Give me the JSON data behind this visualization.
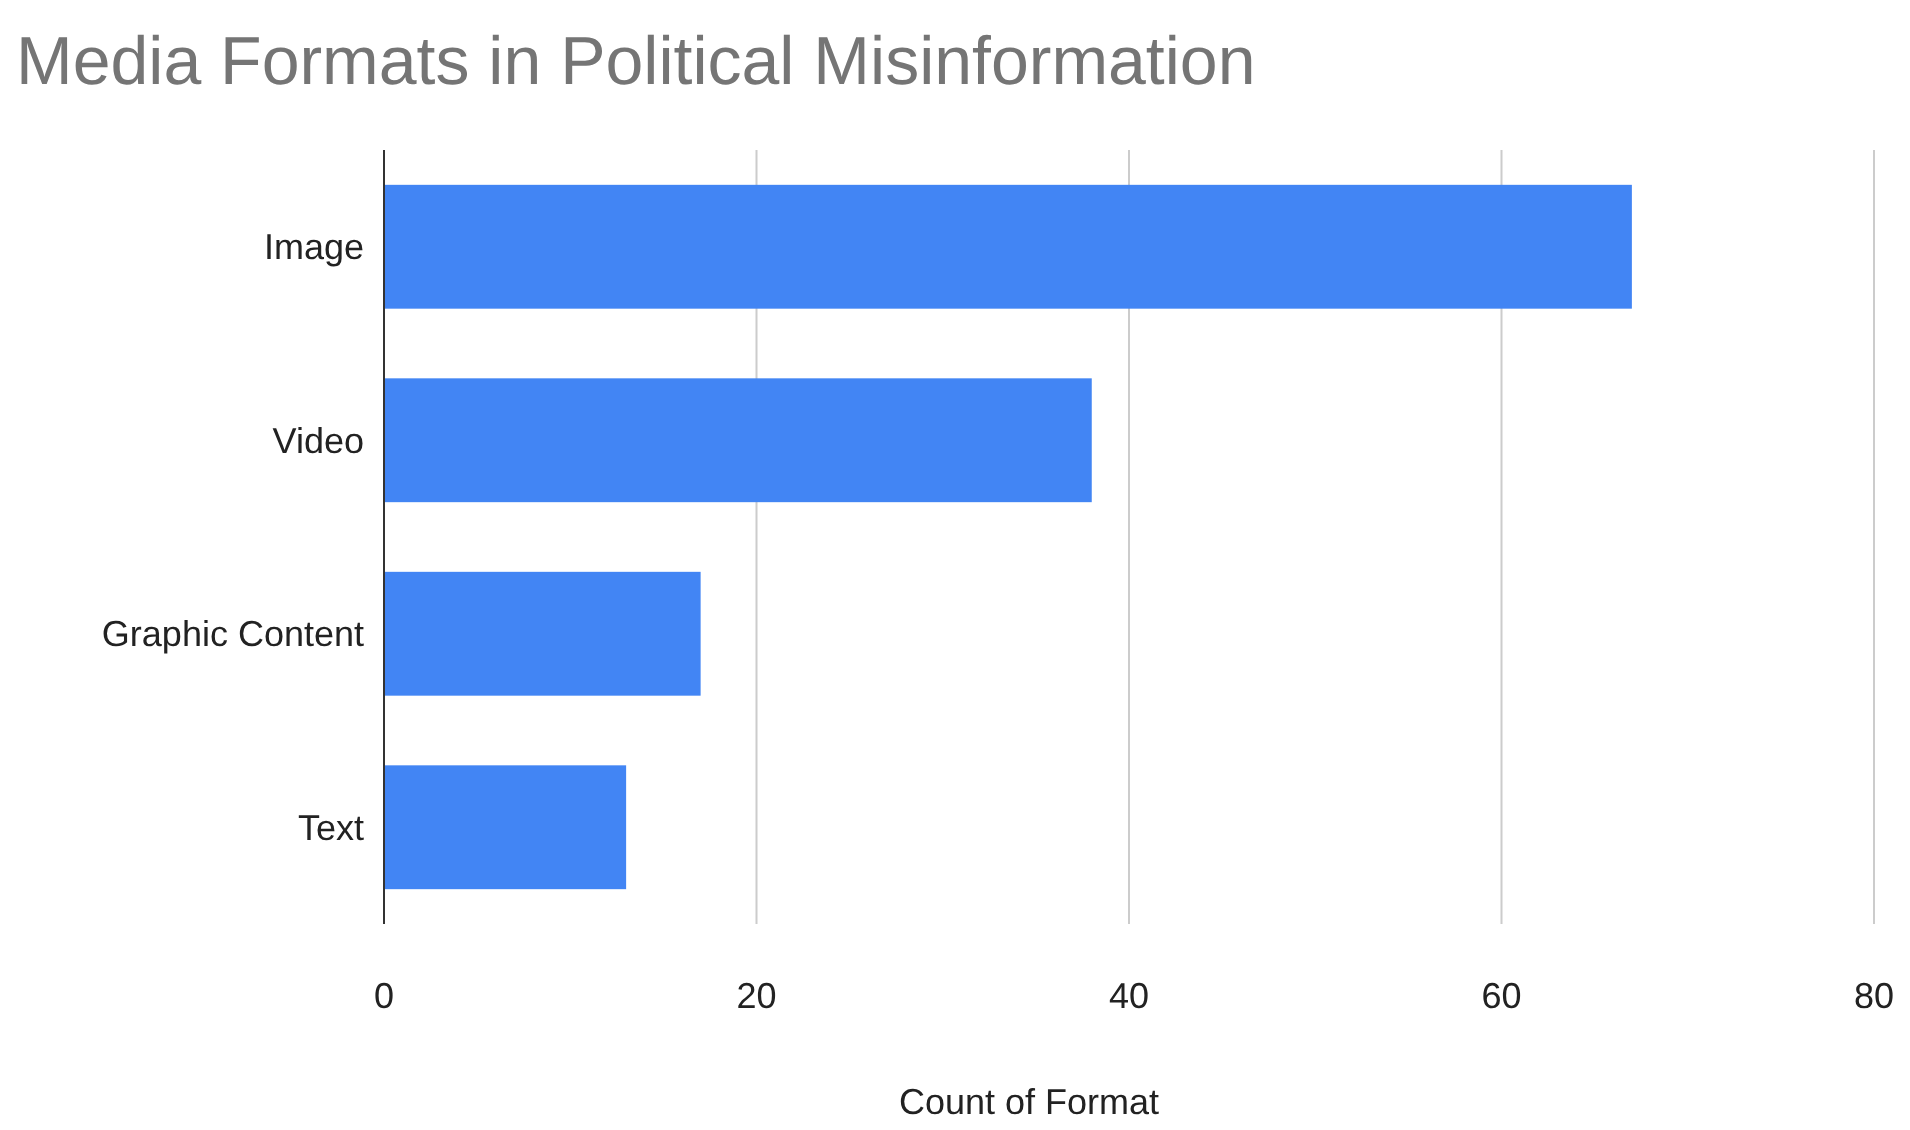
{
  "chart_data": {
    "type": "bar",
    "orientation": "horizontal",
    "title": "Media Formats in Political Misinformation",
    "xlabel": "Count of Format",
    "categories": [
      "Image",
      "Video",
      "Graphic Content",
      "Text"
    ],
    "values": [
      67,
      38,
      17,
      13
    ],
    "color": "#4285f4",
    "xlim": [
      0,
      80
    ],
    "xticks": [
      0,
      20,
      40,
      60,
      80
    ],
    "grid": "x"
  }
}
